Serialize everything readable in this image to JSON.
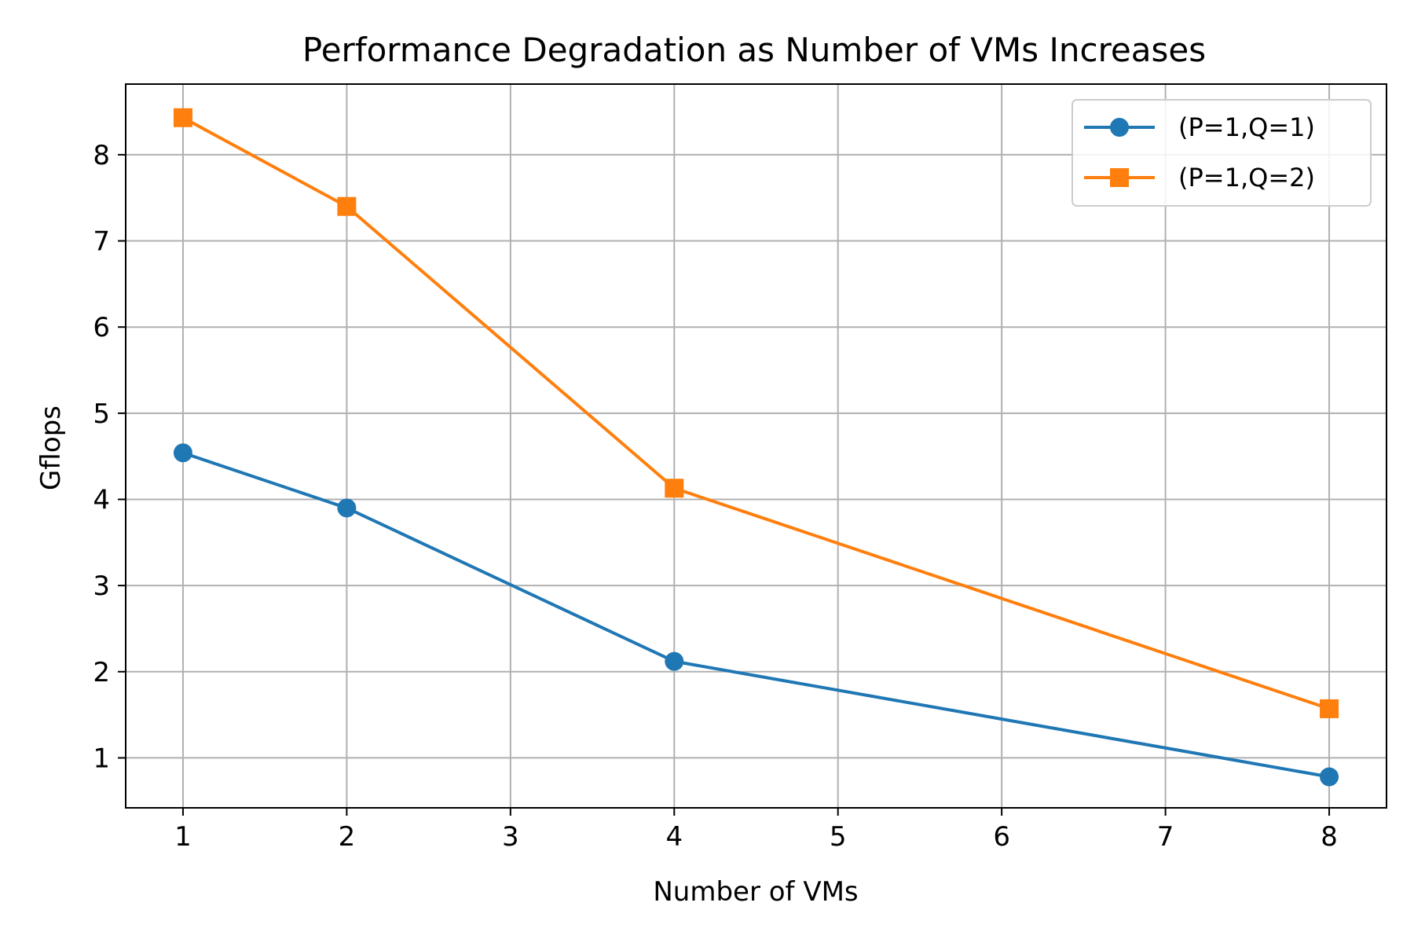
{
  "chart_data": {
    "type": "line",
    "title": "Performance Degradation as Number of VMs Increases",
    "xlabel": "Number of VMs",
    "ylabel": "Gflops",
    "xlim": [
      0.65,
      8.35
    ],
    "ylim": [
      0.42,
      8.82
    ],
    "xticks": [
      1,
      2,
      3,
      4,
      5,
      6,
      7,
      8
    ],
    "yticks": [
      1,
      2,
      3,
      4,
      5,
      6,
      7,
      8
    ],
    "grid": true,
    "legend_position": "top-right",
    "series": [
      {
        "name": "(P=1,Q=1)",
        "color": "#1f77b4",
        "marker": "circle",
        "x": [
          1,
          2,
          4,
          8
        ],
        "y": [
          4.54,
          3.9,
          2.12,
          0.78
        ]
      },
      {
        "name": "(P=1,Q=2)",
        "color": "#ff7f0e",
        "marker": "square",
        "x": [
          1,
          2,
          4,
          8
        ],
        "y": [
          8.43,
          7.4,
          4.13,
          1.57
        ]
      }
    ]
  }
}
